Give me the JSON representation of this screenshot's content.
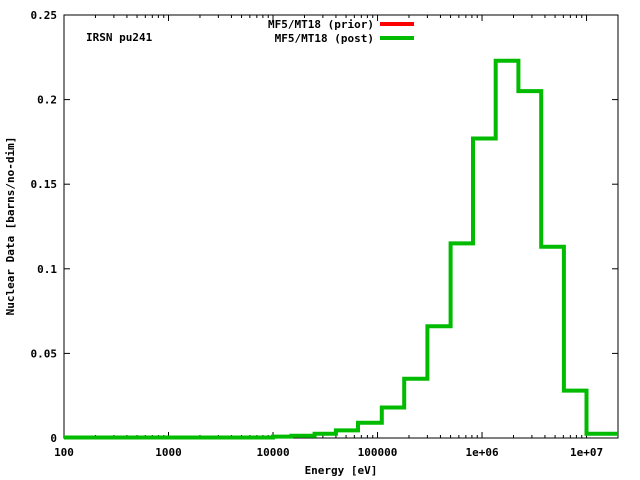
{
  "chart_data": {
    "type": "line",
    "title": "",
    "annotation": "IRSN pu241",
    "xlabel": "Energy [eV]",
    "ylabel": "Nuclear Data [barns/no-dim]",
    "x_scale": "log",
    "xlim": [
      100,
      20000000
    ],
    "ylim": [
      0,
      0.25
    ],
    "x_ticks": [
      100,
      1000,
      10000,
      100000,
      1000000,
      10000000
    ],
    "x_tick_labels": [
      "100",
      "1000",
      "10000",
      "100000",
      "1e+06",
      "1e+07"
    ],
    "y_ticks": [
      0,
      0.05,
      0.1,
      0.15,
      0.2,
      0.25
    ],
    "y_tick_labels": [
      "0",
      "0.05",
      "0.1",
      "0.15",
      "0.2",
      "0.25"
    ],
    "legend_position": "top-center",
    "grid": false,
    "series": [
      {
        "name": "MF5/MT18 (prior)",
        "color": "#ff0000",
        "steps": []
      },
      {
        "name": "MF5/MT18 (post)",
        "color": "#00bb00",
        "steps": [
          {
            "x0": 100,
            "x1": 10000,
            "y": 0.0003
          },
          {
            "x0": 10000,
            "x1": 15000,
            "y": 0.0008
          },
          {
            "x0": 15000,
            "x1": 25000,
            "y": 0.0013
          },
          {
            "x0": 25000,
            "x1": 40000,
            "y": 0.0025
          },
          {
            "x0": 40000,
            "x1": 65000,
            "y": 0.0045
          },
          {
            "x0": 65000,
            "x1": 110000,
            "y": 0.009
          },
          {
            "x0": 110000,
            "x1": 180000,
            "y": 0.018
          },
          {
            "x0": 180000,
            "x1": 300000,
            "y": 0.035
          },
          {
            "x0": 300000,
            "x1": 500000,
            "y": 0.066
          },
          {
            "x0": 500000,
            "x1": 820000,
            "y": 0.115
          },
          {
            "x0": 820000,
            "x1": 1350000,
            "y": 0.177
          },
          {
            "x0": 1350000,
            "x1": 2230000,
            "y": 0.223
          },
          {
            "x0": 2230000,
            "x1": 3680000,
            "y": 0.205
          },
          {
            "x0": 3680000,
            "x1": 6070000,
            "y": 0.113
          },
          {
            "x0": 6070000,
            "x1": 10000000,
            "y": 0.028
          },
          {
            "x0": 10000000,
            "x1": 20000000,
            "y": 0.0025
          }
        ]
      }
    ]
  }
}
